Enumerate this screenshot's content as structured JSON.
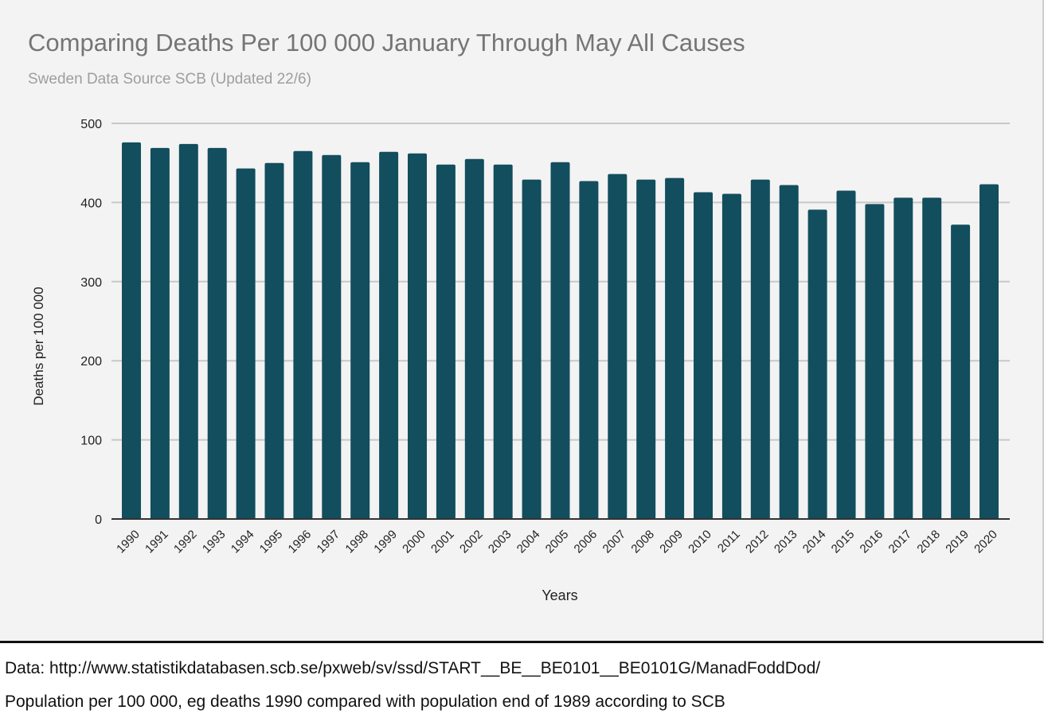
{
  "chart_data": {
    "type": "bar",
    "title": "Comparing Deaths Per 100 000 January Through May All Causes",
    "subtitle": "Sweden Data Source SCB (Updated 22/6)",
    "xlabel": "Years",
    "ylabel": "Deaths per 100 000",
    "ylim": [
      0,
      500
    ],
    "yticks": [
      "0",
      "100",
      "200",
      "300",
      "400",
      "500"
    ],
    "grid": true,
    "bar_color": "#124e5d",
    "categories": [
      "1990",
      "1991",
      "1992",
      "1993",
      "1994",
      "1995",
      "1996",
      "1997",
      "1998",
      "1999",
      "2000",
      "2001",
      "2002",
      "2003",
      "2004",
      "2005",
      "2006",
      "2007",
      "2008",
      "2009",
      "2010",
      "2011",
      "2012",
      "2013",
      "2014",
      "2015",
      "2016",
      "2017",
      "2018",
      "2019",
      "2020"
    ],
    "values": [
      476,
      469,
      474,
      469,
      443,
      450,
      465,
      460,
      451,
      464,
      462,
      448,
      455,
      448,
      429,
      451,
      427,
      436,
      429,
      431,
      413,
      411,
      429,
      422,
      391,
      415,
      398,
      406,
      406,
      372,
      423
    ]
  },
  "footer": {
    "line1": "Data: http://www.statistikdatabasen.scb.se/pxweb/sv/ssd/START__BE__BE0101__BE0101G/ManadFoddDod/",
    "line2": "Population per 100 000, eg deaths 1990 compared with population end of 1989 according to SCB"
  }
}
